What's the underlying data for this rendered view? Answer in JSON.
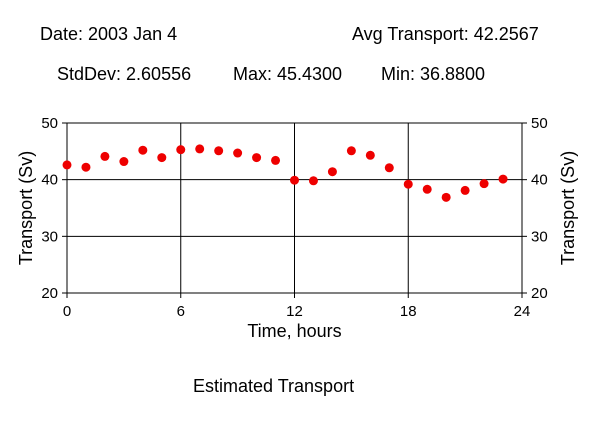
{
  "header": {
    "date": "Date: 2003 Jan 4",
    "avg": "Avg Transport: 42.2567",
    "stddev": "StdDev: 2.60556",
    "max": "Max: 45.4300",
    "min": "Min: 36.8800"
  },
  "footer": {
    "caption": "Estimated Transport"
  },
  "colors": {
    "marker": "#ee0000",
    "axis": "#000000",
    "grid": "#000000"
  },
  "chart_data": {
    "type": "scatter",
    "title": "",
    "xlabel": "Time, hours",
    "ylabel": "Transport (Sv)",
    "ylabel_right": "Transport (Sv)",
    "xlim": [
      0,
      24
    ],
    "ylim": [
      20,
      50
    ],
    "x_ticks": [
      0,
      6,
      12,
      18,
      24
    ],
    "y_ticks": [
      20,
      30,
      40,
      50
    ],
    "grid": true,
    "series": [
      {
        "x": [
          0,
          1,
          2,
          3,
          4,
          5,
          6,
          7,
          8,
          9,
          10,
          11,
          12,
          13,
          14,
          15,
          16,
          17,
          18,
          19,
          20,
          21,
          22,
          23
        ],
        "y": [
          42.6,
          42.2,
          44.1,
          43.2,
          45.2,
          43.9,
          45.3,
          45.43,
          45.1,
          44.7,
          43.9,
          43.4,
          39.9,
          39.8,
          41.4,
          45.1,
          44.3,
          42.1,
          39.2,
          38.3,
          36.88,
          38.1,
          39.3,
          40.1
        ]
      }
    ]
  }
}
